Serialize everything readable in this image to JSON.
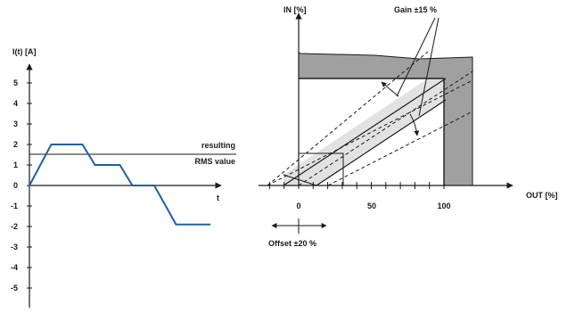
{
  "left_chart": {
    "y_axis_label": "I(t) [A]",
    "x_axis_label": "t",
    "y_ticks": [
      "5",
      "4",
      "3",
      "2",
      "1",
      "0",
      "-1",
      "-2",
      "-3",
      "-4",
      "-5"
    ],
    "rms_label_line1": "resulting",
    "rms_label_line2": "RMS value",
    "colors": {
      "signal": "#1f5fa8",
      "axis": "#1a1a1a"
    }
  },
  "right_chart": {
    "y_axis_label": "IN [%]",
    "x_axis_label": "OUT [%]",
    "x_ticks": [
      "0",
      "50",
      "100"
    ],
    "gain_label": "Gain ±15 %",
    "offset_label": "Offset ±20 %",
    "colors": {
      "wall": "#a0a0a0",
      "band": "#e2e2e2",
      "axis": "#1a1a1a"
    }
  },
  "chart_data": [
    {
      "type": "line",
      "xlabel": "t",
      "ylabel": "I(t) [A]",
      "ylim": [
        -5,
        5
      ],
      "x": [
        0,
        0.7,
        1.7,
        2.1,
        2.9,
        3.3,
        4.0,
        4.7,
        5.8
      ],
      "y": [
        0,
        2,
        2,
        1,
        1,
        0,
        0,
        -1.9,
        -1.9
      ],
      "annotations": [
        {
          "text": "resulting RMS value",
          "y": 1.5
        }
      ]
    },
    {
      "type": "line",
      "xlabel": "OUT [%]",
      "ylabel": "IN [%]",
      "x_ticks": [
        0,
        50,
        100
      ],
      "annotations": [
        "Gain ±15 %",
        "Offset ±20 %"
      ]
    }
  ]
}
